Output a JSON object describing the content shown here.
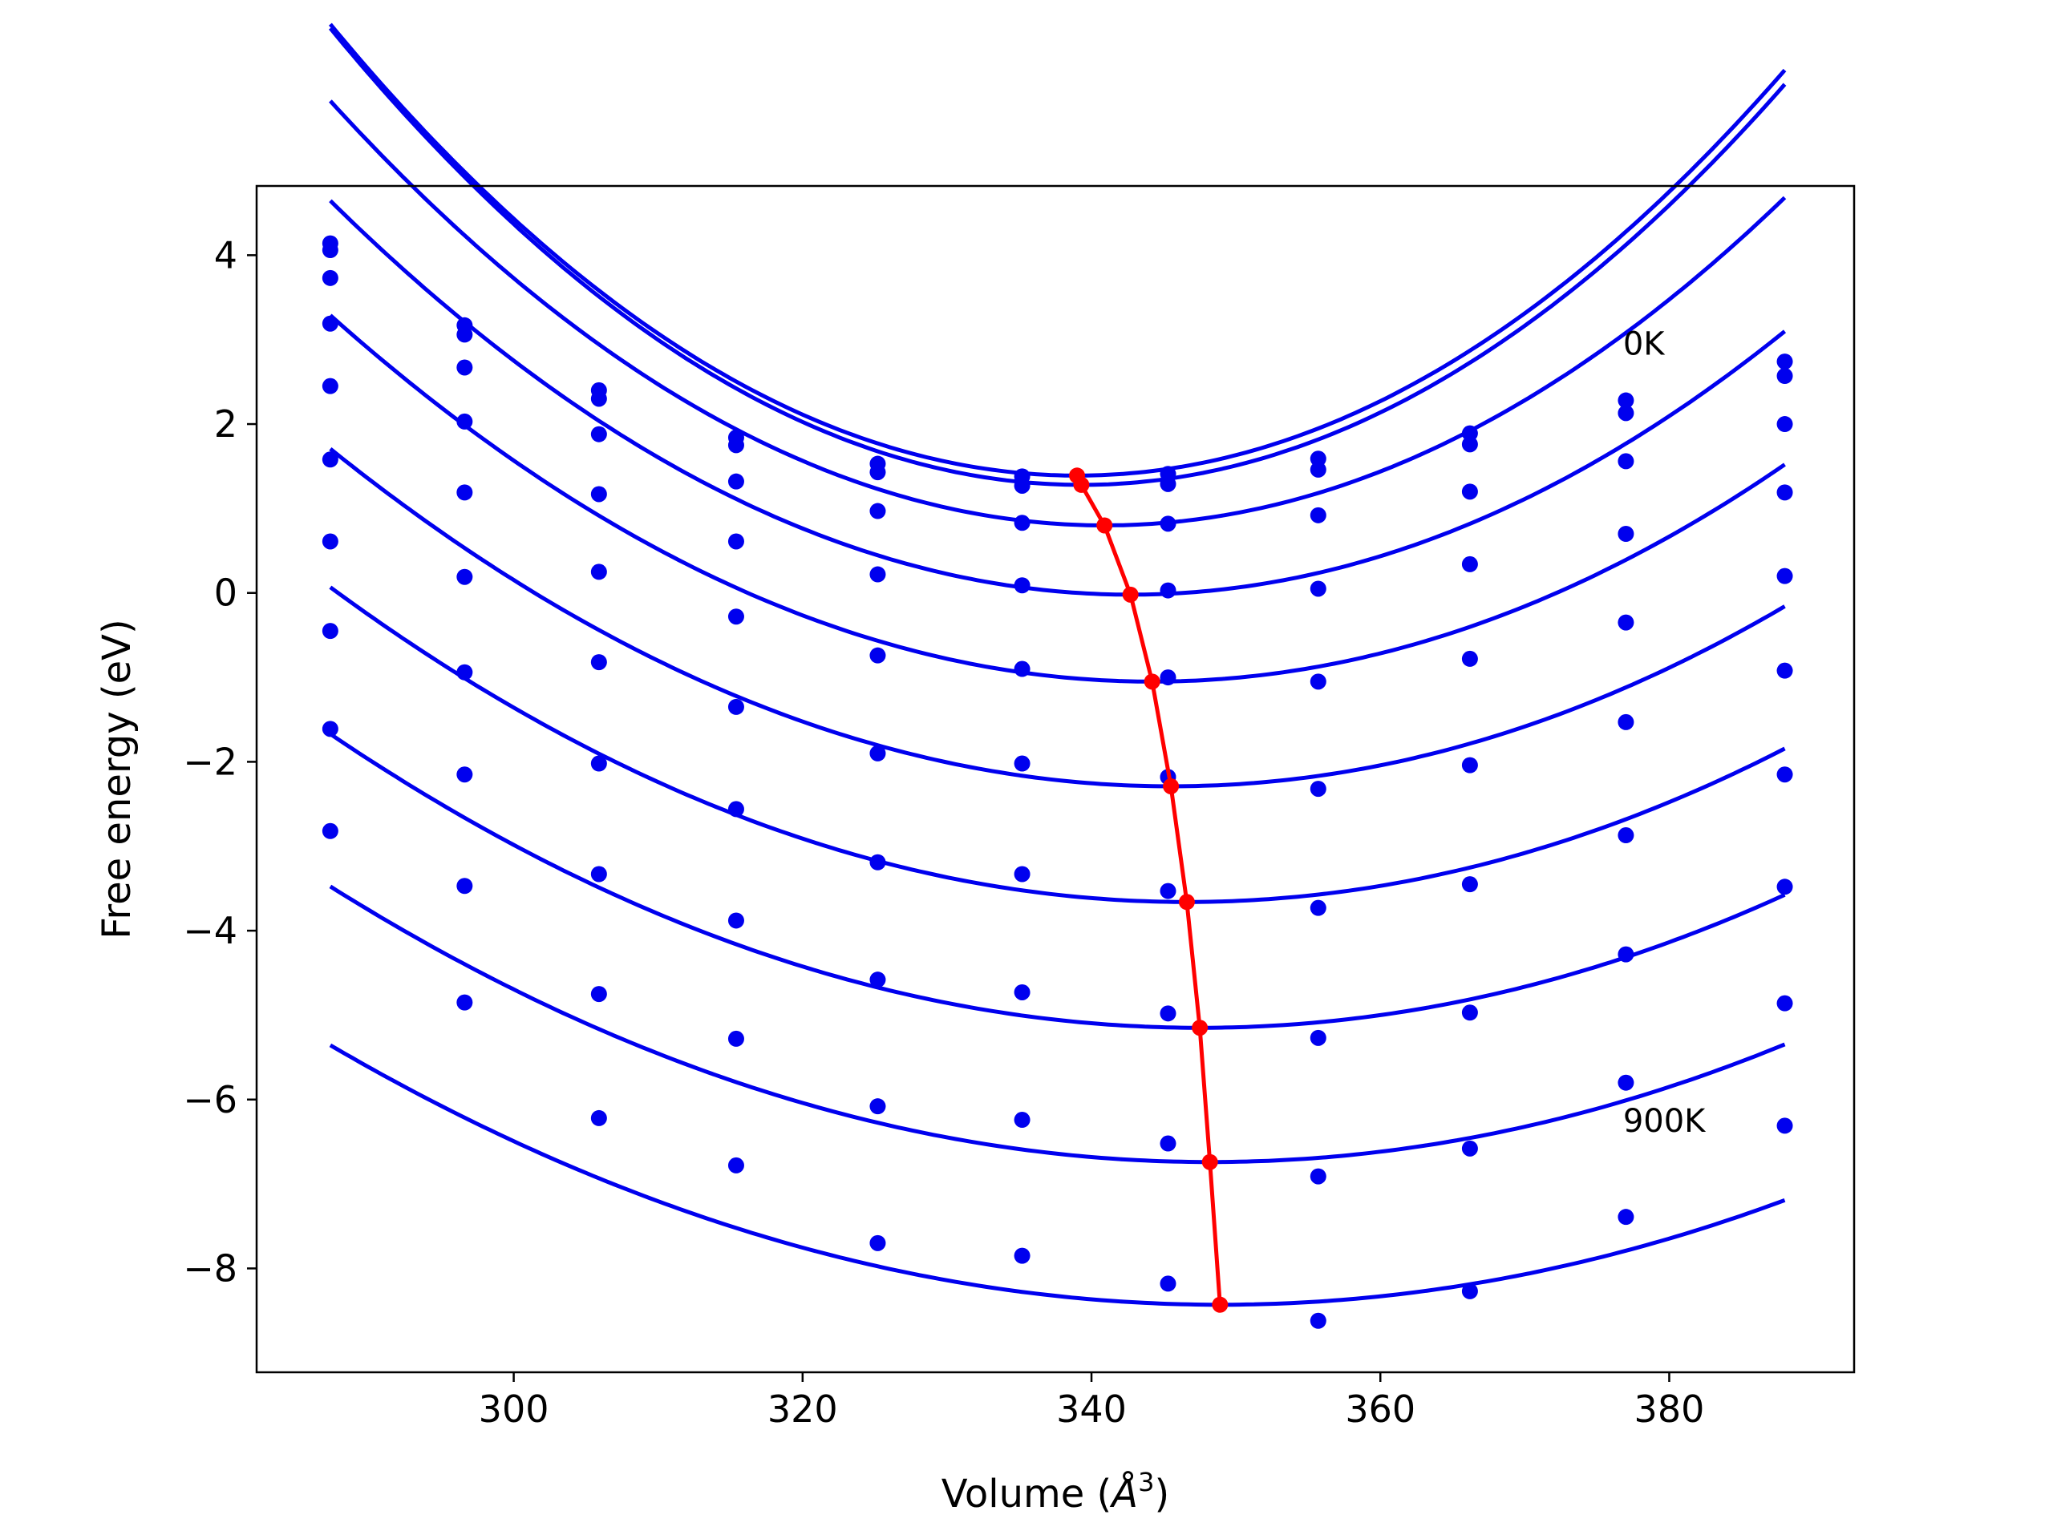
{
  "chart_data": {
    "type": "line",
    "xlabel": "Volume (Å³)",
    "xlabel_main": "Volume (",
    "xlabel_unit": "Å",
    "xlabel_exp": "3",
    "xlabel_close": ")",
    "ylabel": "Free energy (eV)",
    "xlim": [
      282.2,
      392.8
    ],
    "ylim": [
      -9.23,
      4.82
    ],
    "x_ticks": [
      300,
      320,
      340,
      360,
      380
    ],
    "x_tick_labels": [
      "300",
      "320",
      "340",
      "360",
      "380"
    ],
    "y_ticks": [
      4,
      2,
      0,
      -2,
      -4,
      -6,
      -8
    ],
    "y_tick_labels": [
      "4",
      "2",
      "0",
      "−2",
      "−4",
      "−6",
      "−8"
    ],
    "grid": false,
    "annotations": [
      {
        "text": "0K",
        "x": 376.8,
        "y": 2.82
      },
      {
        "text": "900K",
        "x": 376.8,
        "y": -6.38
      }
    ],
    "colors": {
      "series": "#0000ee",
      "minima": "#ff0000"
    },
    "volumes": [
      287.3,
      296.6,
      305.9,
      315.4,
      325.2,
      335.2,
      345.3,
      355.7,
      366.2,
      377.0,
      388.0
    ],
    "series": [
      {
        "values": [
          4.14,
          3.17,
          2.4,
          1.84,
          1.53,
          1.38,
          1.41,
          1.59,
          1.89,
          2.28,
          2.74
        ],
        "fit": {
          "a": 0.002,
          "b": 339.0,
          "c": 1.39
        }
      },
      {
        "values": [
          4.06,
          3.06,
          2.3,
          1.75,
          1.43,
          1.27,
          1.29,
          1.46,
          1.76,
          2.13,
          2.57
        ],
        "fit": {
          "a": 0.002,
          "b": 339.3,
          "c": 1.28
        }
      },
      {
        "values": [
          3.73,
          2.67,
          1.88,
          1.32,
          0.97,
          0.83,
          0.82,
          0.92,
          1.2,
          1.56,
          2.0
        ],
        "fit": {
          "a": 0.00175,
          "b": 340.9,
          "c": 0.8
        }
      },
      {
        "values": [
          3.19,
          2.03,
          1.17,
          0.61,
          0.22,
          0.09,
          0.03,
          0.05,
          0.34,
          0.7,
          1.19
        ],
        "fit": {
          "a": 0.00152,
          "b": 342.7,
          "c": -0.02
        }
      },
      {
        "values": [
          2.45,
          1.19,
          0.25,
          -0.28,
          -0.74,
          -0.9,
          -1.0,
          -1.05,
          -0.78,
          -0.35,
          0.2
        ],
        "fit": {
          "a": 0.00134,
          "b": 344.2,
          "c": -1.05
        }
      },
      {
        "values": [
          1.58,
          0.19,
          -0.82,
          -1.35,
          -1.9,
          -2.02,
          -2.18,
          -2.32,
          -2.04,
          -1.53,
          -0.92
        ],
        "fit": {
          "a": 0.00118,
          "b": 345.5,
          "c": -2.29
        }
      },
      {
        "values": [
          0.61,
          -0.94,
          -2.02,
          -2.56,
          -3.19,
          -3.33,
          -3.53,
          -3.73,
          -3.45,
          -2.87,
          -2.15
        ],
        "fit": {
          "a": 0.00106,
          "b": 346.6,
          "c": -3.66
        }
      },
      {
        "values": [
          -0.45,
          -2.15,
          -3.33,
          -3.88,
          -4.58,
          -4.73,
          -4.98,
          -5.27,
          -4.97,
          -4.28,
          -3.48
        ],
        "fit": {
          "a": 0.00096,
          "b": 347.5,
          "c": -5.15
        }
      },
      {
        "values": [
          -1.61,
          -3.47,
          -4.75,
          -5.28,
          -6.08,
          -6.24,
          -6.52,
          -6.91,
          -6.58,
          -5.8,
          -4.86
        ],
        "fit": {
          "a": 0.00088,
          "b": 348.2,
          "c": -6.74
        }
      },
      {
        "values": [
          -2.82,
          -4.85,
          -6.22,
          -6.78,
          -7.7,
          -7.85,
          -8.18,
          -8.62,
          -8.27,
          -7.39,
          -6.31
        ],
        "fit": {
          "a": 0.00081,
          "b": 348.9,
          "c": -8.43
        }
      }
    ],
    "minima": {
      "x": [
        339.0,
        339.3,
        340.9,
        342.7,
        344.2,
        345.5,
        346.6,
        347.5,
        348.2,
        348.9
      ],
      "y": [
        1.39,
        1.28,
        0.8,
        -0.02,
        -1.05,
        -2.29,
        -3.66,
        -5.15,
        -6.74,
        -8.43
      ]
    }
  }
}
